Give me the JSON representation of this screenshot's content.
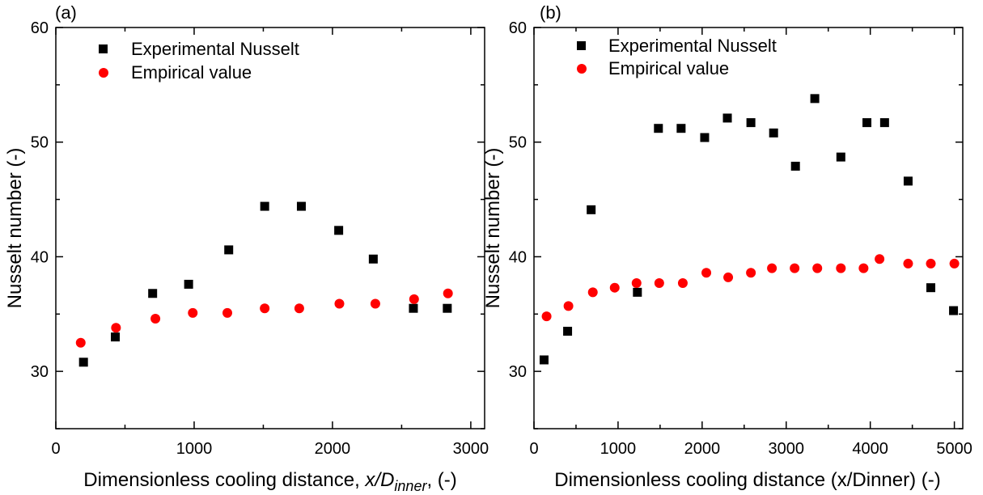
{
  "chart_data": [
    {
      "type": "scatter",
      "panel_label": "(a)",
      "xlabel_parts": [
        "Dimensionless cooling distance, ",
        "x/D",
        "inner",
        ", (-)"
      ],
      "ylabel": "Nusselt number (-)",
      "xlim": [
        0,
        3100
      ],
      "ylim": [
        25,
        60
      ],
      "xticks": [
        0,
        1000,
        2000,
        3000
      ],
      "yticks": [
        30,
        40,
        50,
        60
      ],
      "legend_position": "top-left",
      "grid": false,
      "series": [
        {
          "name": "Experimental Nusselt",
          "marker": "square",
          "color": "#000000",
          "x": [
            200,
            430,
            700,
            960,
            1250,
            1510,
            1775,
            2045,
            2295,
            2585,
            2830
          ],
          "y": [
            30.8,
            33.0,
            36.8,
            37.6,
            40.6,
            44.4,
            44.4,
            42.3,
            39.8,
            35.5,
            35.5
          ]
        },
        {
          "name": "Empirical value",
          "marker": "circle",
          "color": "#ff0000",
          "x": [
            180,
            435,
            720,
            990,
            1240,
            1510,
            1760,
            2050,
            2310,
            2590,
            2835
          ],
          "y": [
            32.5,
            33.8,
            34.6,
            35.1,
            35.1,
            35.5,
            35.5,
            35.9,
            35.9,
            36.3,
            36.8
          ]
        }
      ]
    },
    {
      "type": "scatter",
      "panel_label": "(b)",
      "xlabel": "Dimensionless cooling distance (x/Dinner) (-)",
      "ylabel": "Nusselt number (-)",
      "xlim": [
        0,
        5100
      ],
      "ylim": [
        25,
        60
      ],
      "xticks": [
        0,
        1000,
        2000,
        3000,
        4000,
        5000
      ],
      "yticks": [
        30,
        40,
        50,
        60
      ],
      "legend_position": "top-left",
      "grid": false,
      "series": [
        {
          "name": "Experimental Nusselt",
          "marker": "square",
          "color": "#000000",
          "x": [
            120,
            400,
            680,
            1230,
            1480,
            1750,
            2030,
            2300,
            2580,
            2850,
            3110,
            3340,
            3650,
            3960,
            4170,
            4450,
            4720,
            4990
          ],
          "y": [
            31.0,
            33.5,
            44.1,
            36.9,
            51.2,
            51.2,
            50.4,
            52.1,
            51.7,
            50.8,
            47.9,
            53.8,
            48.7,
            51.7,
            51.7,
            46.6,
            37.3,
            35.3
          ]
        },
        {
          "name": "Empirical value",
          "marker": "circle",
          "color": "#ff0000",
          "x": [
            150,
            410,
            700,
            960,
            1220,
            1490,
            1770,
            2050,
            2310,
            2580,
            2830,
            3100,
            3370,
            3650,
            3920,
            4110,
            4450,
            4720,
            5000
          ],
          "y": [
            34.8,
            35.7,
            36.9,
            37.3,
            37.7,
            37.7,
            37.7,
            38.6,
            38.2,
            38.6,
            39.0,
            39.0,
            39.0,
            39.0,
            39.0,
            39.8,
            39.4,
            39.4,
            39.4
          ]
        }
      ]
    }
  ]
}
